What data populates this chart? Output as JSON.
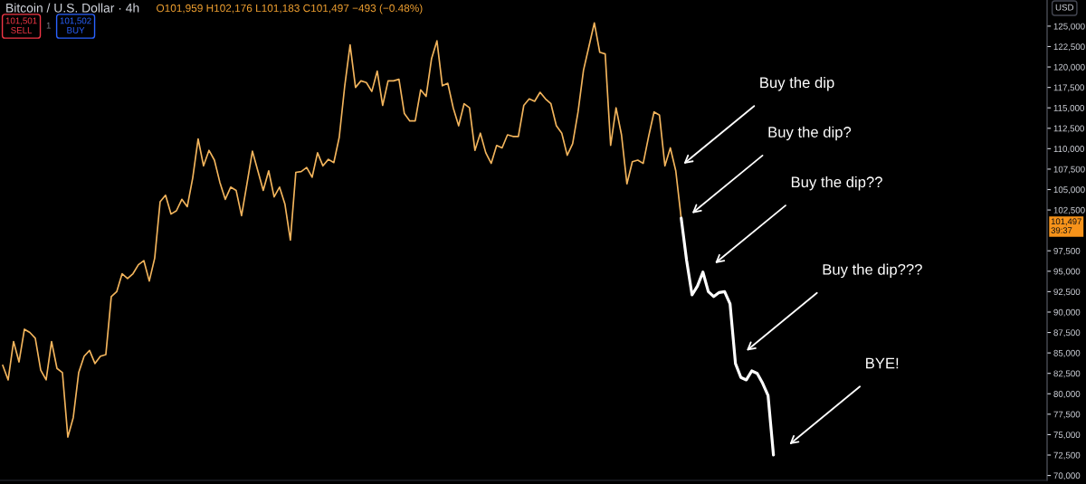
{
  "chart_data": {
    "type": "line",
    "title": "Bitcoin / U.S. Dollar · 4h",
    "subtitle": "O101,959 H102,176 L101,183 C101,497 −493 (−0.48%)",
    "categories": [
      null,
      null,
      null,
      null,
      null,
      null,
      null,
      null,
      null,
      null,
      null,
      null,
      null,
      null,
      null,
      null,
      null,
      null,
      null,
      null,
      null,
      null,
      null,
      null,
      null,
      null,
      null,
      null,
      null,
      null,
      null,
      null,
      null,
      null,
      null,
      null,
      null,
      null,
      null,
      null,
      null,
      null,
      null,
      null,
      null,
      null,
      null,
      null,
      null,
      null,
      null,
      null,
      null,
      null,
      null,
      null,
      null,
      null,
      null,
      null,
      null,
      null,
      null,
      null,
      null,
      null,
      null,
      null,
      null,
      null,
      null,
      null,
      null,
      null,
      null,
      null,
      null,
      null,
      null,
      null,
      null,
      null,
      null,
      null,
      null,
      null,
      null,
      null,
      null,
      null,
      null,
      null,
      null,
      null,
      null,
      null,
      null,
      null,
      null,
      null,
      null,
      null,
      null,
      null,
      null,
      null,
      null,
      null,
      null,
      null,
      null,
      null,
      null,
      null,
      null,
      null,
      null,
      null,
      null,
      null,
      null,
      null,
      null,
      null,
      null,
      null,
      null,
      null,
      null,
      null,
      null,
      null,
      null,
      null,
      null,
      null,
      null,
      null,
      null,
      null,
      null,
      null,
      null
    ],
    "series": [
      {
        "color": "#f2b45c",
        "values": [
          83500,
          81700,
          86400,
          83900,
          87900,
          87500,
          86800,
          82900,
          81700,
          86400,
          83100,
          82600,
          74700,
          77100,
          82600,
          84600,
          85300,
          83700,
          84600,
          84800,
          91900,
          92500,
          94700,
          94100,
          94700,
          95800,
          96300,
          93800,
          96600,
          103500,
          104300,
          102000,
          102400,
          103800,
          102900,
          106400,
          111200,
          107900,
          109800,
          108600,
          105900,
          103800,
          105300,
          104900,
          101800,
          105700,
          109700,
          107300,
          104900,
          107300,
          104100,
          105300,
          103200,
          98800,
          107100,
          107200,
          107700,
          106500,
          109500,
          107900,
          108700,
          108300,
          111400,
          117600,
          122700,
          117500,
          118300,
          118100,
          117000,
          119500,
          115300,
          118300,
          118300,
          118500,
          114300,
          113400,
          113400,
          117200,
          116400,
          121000,
          123200,
          117700,
          118000,
          115000,
          112800,
          115500,
          115000,
          109800,
          111900,
          109500,
          108200,
          110400,
          110100,
          111700,
          111500,
          111500,
          115300,
          116100,
          115800,
          116900,
          116100,
          115500,
          112800,
          111900,
          109200,
          110600,
          114500,
          119600,
          122500,
          125400,
          121800,
          121600,
          110400,
          115000,
          111700,
          105700,
          108400,
          108600,
          108200,
          111500,
          114500,
          114100,
          107900,
          110100,
          107300,
          101500,
          null,
          null,
          null,
          null,
          null,
          null,
          null,
          null,
          null,
          null,
          null,
          null,
          null,
          null,
          null,
          null,
          null
        ]
      },
      {
        "color": "#ffffff",
        "values": [
          null,
          null,
          null,
          null,
          null,
          null,
          null,
          null,
          null,
          null,
          null,
          null,
          null,
          null,
          null,
          null,
          null,
          null,
          null,
          null,
          null,
          null,
          null,
          null,
          null,
          null,
          null,
          null,
          null,
          null,
          null,
          null,
          null,
          null,
          null,
          null,
          null,
          null,
          null,
          null,
          null,
          null,
          null,
          null,
          null,
          null,
          null,
          null,
          null,
          null,
          null,
          null,
          null,
          null,
          null,
          null,
          null,
          null,
          null,
          null,
          null,
          null,
          null,
          null,
          null,
          null,
          null,
          null,
          null,
          null,
          null,
          null,
          null,
          null,
          null,
          null,
          null,
          null,
          null,
          null,
          null,
          null,
          null,
          null,
          null,
          null,
          null,
          null,
          null,
          null,
          null,
          null,
          null,
          null,
          null,
          null,
          null,
          null,
          null,
          null,
          null,
          null,
          null,
          null,
          null,
          null,
          null,
          null,
          null,
          null,
          null,
          null,
          null,
          null,
          null,
          null,
          null,
          null,
          null,
          null,
          null,
          null,
          null,
          null,
          null,
          101500,
          96300,
          92100,
          93200,
          94900,
          92500,
          91900,
          92400,
          92500,
          91000,
          83700,
          82000,
          81700,
          82800,
          82500,
          81300,
          79800,
          72500
        ]
      }
    ],
    "ylim": [
      69400,
      128200
    ],
    "yticks": [
      {
        "value": 70000,
        "label": "70,000"
      },
      {
        "value": 72500,
        "label": "72,500"
      },
      {
        "value": 75000,
        "label": "75,000"
      },
      {
        "value": 77500,
        "label": "77,500"
      },
      {
        "value": 80000,
        "label": "80,000"
      },
      {
        "value": 82500,
        "label": "82,500"
      },
      {
        "value": 85000,
        "label": "85,000"
      },
      {
        "value": 87500,
        "label": "87,500"
      },
      {
        "value": 90000,
        "label": "90,000"
      },
      {
        "value": 92500,
        "label": "92,500"
      },
      {
        "value": 95000,
        "label": "95,000"
      },
      {
        "value": 97500,
        "label": "97,500"
      },
      {
        "value": 102500,
        "label": "102,500"
      },
      {
        "value": 105000,
        "label": "105,000"
      },
      {
        "value": 107500,
        "label": "107,500"
      },
      {
        "value": 110000,
        "label": "110,000"
      },
      {
        "value": 112500,
        "label": "112,500"
      },
      {
        "value": 115000,
        "label": "115,000"
      },
      {
        "value": 117500,
        "label": "117,500"
      },
      {
        "value": 120000,
        "label": "120,000"
      },
      {
        "value": 122500,
        "label": "122,500"
      },
      {
        "value": 125000,
        "label": "125,000"
      }
    ],
    "tick_labels": "y",
    "annotations": [
      "Buy the dip",
      "Buy the dip?",
      "Buy the dip??",
      "Buy the dip???",
      "BYE!",
      "101,501\nSELL",
      "1",
      "101,502\nBUY",
      "USD",
      "101,497\n39:37"
    ]
  }
}
